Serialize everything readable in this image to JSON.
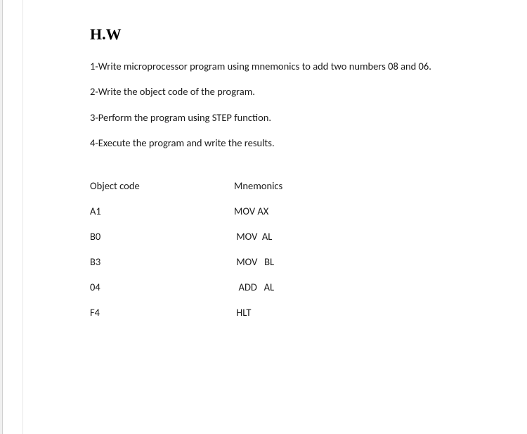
{
  "title": "H.W",
  "instructions": [
    "1-Write microprocessor program using  mnemonics to add two numbers  08 and 06.",
    "2-Write the object code of the program.",
    "3-Perform the program using  STEP function.",
    "4-Execute the program and write the results."
  ],
  "table": {
    "headers": {
      "left": "Object code",
      "right": "Mnemonics"
    },
    "rows": [
      {
        "code": "A1",
        "mnemonic": "MOV AX"
      },
      {
        "code": "B0",
        "mnemonic": " MOV  AL"
      },
      {
        "code": "B3",
        "mnemonic": " MOV   BL"
      },
      {
        "code": "04",
        "mnemonic": "  ADD   AL"
      },
      {
        "code": "F4",
        "mnemonic": " HLT"
      }
    ]
  },
  "styling": {
    "title_font": "Times New Roman",
    "title_fontsize": 22,
    "title_weight": "bold",
    "body_font": "Calibri",
    "body_fontsize": 14.5,
    "text_color": "#1a1a1a",
    "background_color": "#ffffff",
    "page_edge_color": "#f0f0f0",
    "col_left_width": 205,
    "line_spacing": 16,
    "table_row_spacing": 18
  }
}
